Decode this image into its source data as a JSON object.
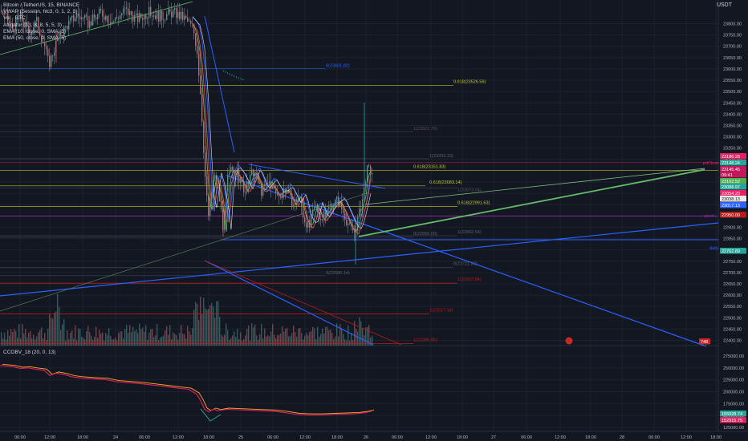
{
  "header": {
    "title": "Bitcoin / TetherUS, 15, BINANCE",
    "unit": "USDT",
    "indicators": [
      "VWAP (Session, hlc3, 0, 1, 2, 3)",
      "Vol · BTC",
      "Alligator (13, 8, 8, 5, 5, 3)",
      "EMA (10, close, 0, SMA, 5)",
      "EMA (50, close, 0, SMA, 5)"
    ],
    "lower_indicator": "CCOBV_18 (20, 0, 13)"
  },
  "chart_data": {
    "type": "candlestick",
    "price_axis": {
      "ylim": [
        22385,
        23855
      ],
      "ticks": [
        23800,
        23750,
        23700,
        23650,
        23600,
        23550,
        23500,
        23450,
        23400,
        23350,
        23300,
        23250,
        23200,
        23150,
        23100,
        23050,
        23000,
        22950,
        22900,
        22850,
        22800,
        22750,
        22700,
        22650,
        22600,
        22550,
        22500,
        22450,
        22400
      ]
    },
    "time_axis": {
      "ticks": [
        "06:00",
        "12:00",
        "18:00",
        "24",
        "06:00",
        "12:00",
        "18:00",
        "25",
        "06:00",
        "12:00",
        "18:00",
        "26",
        "06:00",
        "12:00",
        "18:00",
        "27",
        "06:00",
        "12:00",
        "18:00",
        "28",
        "06:00",
        "12:00",
        "18:00"
      ]
    },
    "price_path": [
      [
        0,
        23860
      ],
      [
        15,
        23780
      ],
      [
        25,
        23830
      ],
      [
        35,
        23760
      ],
      [
        45,
        23810
      ],
      [
        55,
        23700
      ],
      [
        60,
        23620
      ],
      [
        64,
        23660
      ],
      [
        72,
        23740
      ],
      [
        82,
        23790
      ],
      [
        95,
        23840
      ],
      [
        110,
        23800
      ],
      [
        125,
        23850
      ],
      [
        140,
        23810
      ],
      [
        155,
        23860
      ],
      [
        170,
        23820
      ],
      [
        185,
        23850
      ],
      [
        200,
        23830
      ],
      [
        215,
        23850
      ],
      [
        230,
        23820
      ],
      [
        240,
        23780
      ],
      [
        245,
        23680
      ],
      [
        250,
        23450
      ],
      [
        253,
        23250
      ],
      [
        256,
        23060
      ],
      [
        259,
        22950
      ],
      [
        262,
        23030
      ],
      [
        266,
        23130
      ],
      [
        270,
        23080
      ],
      [
        274,
        23000
      ],
      [
        278,
        22880
      ],
      [
        282,
        23100
      ],
      [
        288,
        23160
      ],
      [
        295,
        23130
      ],
      [
        305,
        23060
      ],
      [
        315,
        23150
      ],
      [
        325,
        23060
      ],
      [
        335,
        23100
      ],
      [
        345,
        23040
      ],
      [
        355,
        23070
      ],
      [
        365,
        23000
      ],
      [
        372,
        23040
      ],
      [
        378,
        22940
      ],
      [
        385,
        22900
      ],
      [
        392,
        23000
      ],
      [
        400,
        22930
      ],
      [
        410,
        22990
      ],
      [
        420,
        23020
      ],
      [
        428,
        22960
      ],
      [
        435,
        22900
      ],
      [
        441,
        22880
      ],
      [
        447,
        22960
      ],
      [
        452,
        23040
      ],
      [
        456,
        23150
      ],
      [
        460,
        23150
      ],
      [
        464,
        23140
      ]
    ],
    "volume_series_label": "Vol · BTC",
    "fib_levels": [
      {
        "label": "0.618(23526.56)"
      },
      {
        "label": "0.618(23151.83)"
      },
      {
        "label": "0.618(23083.14)"
      },
      {
        "label": "0.618(22991.63)"
      },
      {
        "label": "0(23601.82)"
      },
      {
        "label": "1(23322.79)"
      },
      {
        "label": "1(23203.13)"
      },
      {
        "label": "1(23073.04)"
      },
      {
        "label": "0(22856.00)"
      },
      {
        "label": "1(22862.54)"
      },
      {
        "label": "0(22721.80)"
      },
      {
        "label": "0(22686.14)"
      },
      {
        "label": "1(22652.84)"
      },
      {
        "label": "1(22517.14)"
      },
      {
        "label": "1(22385.95)"
      }
    ],
    "right_labels": [
      {
        "text": "pdClose",
        "color": "#e91e63"
      },
      {
        "text": "pivot",
        "color": "#9c27b0"
      },
      {
        "text": "daily",
        "color": "#2962ff"
      }
    ],
    "price_badges": [
      {
        "text": "23186.28",
        "color": "#e91e63"
      },
      {
        "text": "23148.24",
        "color": "#26a69a"
      },
      {
        "text": "23145.45",
        "color": "#c2185b"
      },
      {
        "text": "09:41",
        "color": "#c2185b"
      },
      {
        "text": "23102.52",
        "color": "#4caf50"
      },
      {
        "text": "23088.97",
        "color": "#26a69a"
      },
      {
        "text": "23054.20",
        "color": "#e91e63"
      },
      {
        "text": "23038.13",
        "color": "#e8e8e8"
      },
      {
        "text": "23017.13",
        "color": "#2962ff"
      },
      {
        "text": "22950.00",
        "color": "#b71c1c"
      },
      {
        "text": "22762.89",
        "color": "#26a69a"
      },
      {
        "text": "748",
        "color": "#c62828"
      }
    ],
    "obv_axis": {
      "ticks": [
        "275000.00",
        "250000.00",
        "225000.00",
        "200000.00",
        "175000.00",
        "150000.00",
        "125000.00"
      ],
      "badges": [
        {
          "text": "155928.74",
          "color": "#26a69a"
        },
        {
          "text": "152915.75",
          "color": "#e91e63"
        }
      ]
    },
    "obv_path": [
      [
        0,
        255000
      ],
      [
        15,
        253000
      ],
      [
        25,
        249000
      ],
      [
        35,
        250000
      ],
      [
        45,
        247000
      ],
      [
        55,
        245000
      ],
      [
        62,
        234000
      ],
      [
        70,
        239000
      ],
      [
        80,
        236000
      ],
      [
        90,
        231000
      ],
      [
        100,
        229000
      ],
      [
        115,
        227000
      ],
      [
        130,
        226000
      ],
      [
        145,
        221000
      ],
      [
        160,
        219000
      ],
      [
        175,
        217000
      ],
      [
        190,
        214000
      ],
      [
        205,
        211000
      ],
      [
        220,
        208000
      ],
      [
        235,
        205000
      ],
      [
        245,
        195000
      ],
      [
        250,
        181000
      ],
      [
        255,
        163000
      ],
      [
        260,
        158000
      ],
      [
        266,
        163000
      ],
      [
        272,
        160000
      ],
      [
        282,
        163000
      ],
      [
        295,
        162000
      ],
      [
        310,
        161000
      ],
      [
        325,
        160000
      ],
      [
        340,
        159000
      ],
      [
        355,
        156000
      ],
      [
        370,
        152000
      ],
      [
        385,
        151000
      ],
      [
        400,
        151000
      ],
      [
        415,
        152000
      ],
      [
        430,
        153000
      ],
      [
        445,
        154000
      ],
      [
        455,
        156000
      ],
      [
        463,
        159000
      ]
    ]
  }
}
